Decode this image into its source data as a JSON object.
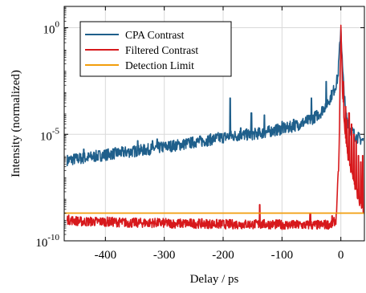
{
  "chart_data": {
    "type": "line",
    "title": "",
    "xlabel": "Delay / ps",
    "ylabel": "Intensity (normalized)",
    "xlim": [
      -470,
      40
    ],
    "ylim": [
      1e-10,
      10
    ],
    "yscale": "log",
    "grid": true,
    "legend_position": "top-left",
    "x_ticks": [
      -400,
      -300,
      -200,
      -100,
      0
    ],
    "x_tick_labels": [
      "-400",
      "-300",
      "-200",
      "-100",
      "0"
    ],
    "y_ticks": [
      {
        "value": 1e-10,
        "base": "10",
        "exp": "-10"
      },
      {
        "value": 1e-05,
        "base": "10",
        "exp": "-5"
      },
      {
        "value": 1,
        "base": "10",
        "exp": "0"
      }
    ],
    "series": [
      {
        "name": "CPA Contrast",
        "color": "#1f5f8b",
        "points": [
          [
            -465,
            6e-07
          ],
          [
            -450,
            7e-07
          ],
          [
            -430,
            8e-07
          ],
          [
            -410,
            1e-06
          ],
          [
            -390,
            1.2e-06
          ],
          [
            -370,
            1.4e-06
          ],
          [
            -350,
            1.6e-06
          ],
          [
            -330,
            1.9e-06
          ],
          [
            -310,
            2.3e-06
          ],
          [
            -290,
            2.8e-06
          ],
          [
            -270,
            3.3e-06
          ],
          [
            -250,
            4.2e-06
          ],
          [
            -230,
            5e-06
          ],
          [
            -210,
            6.5e-06
          ],
          [
            -190,
            8e-06
          ],
          [
            -170,
            9e-06
          ],
          [
            -150,
            1e-05
          ],
          [
            -130,
            1.2e-05
          ],
          [
            -110,
            1.6e-05
          ],
          [
            -90,
            2e-05
          ],
          [
            -70,
            3e-05
          ],
          [
            -50,
            5e-05
          ],
          [
            -35,
            0.0001
          ],
          [
            -20,
            0.0004
          ],
          [
            -10,
            0.0015
          ],
          [
            -5,
            0.005
          ],
          [
            0,
            1
          ],
          [
            3,
            0.01
          ],
          [
            8,
            0.0001
          ],
          [
            15,
            2e-05
          ],
          [
            25,
            8e-06
          ],
          [
            38,
            5e-06
          ]
        ],
        "spikes": [
          [
            -437,
            2e-06
          ],
          [
            -345,
            5e-06
          ],
          [
            -320,
            5e-06
          ],
          [
            -312,
            6e-06
          ],
          [
            -258,
            4e-06
          ],
          [
            -245,
            6e-06
          ],
          [
            -188,
            0.0005
          ],
          [
            -170,
            2e-05
          ],
          [
            -152,
            0.0001
          ],
          [
            -130,
            8e-05
          ],
          [
            -100,
            4e-05
          ],
          [
            -80,
            5e-05
          ],
          [
            -50,
            0.0005
          ],
          [
            -25,
            0.003
          ]
        ]
      },
      {
        "name": "Filtered Contrast",
        "color": "#d7191c",
        "points": [
          [
            -465,
            1e-09
          ],
          [
            -440,
            8e-10
          ],
          [
            -400,
            8e-10
          ],
          [
            -360,
            7e-10
          ],
          [
            -320,
            7e-10
          ],
          [
            -280,
            6.5e-10
          ],
          [
            -240,
            6.5e-10
          ],
          [
            -200,
            6e-10
          ],
          [
            -160,
            6e-10
          ],
          [
            -120,
            6e-10
          ],
          [
            -80,
            5.5e-10
          ],
          [
            -40,
            5.5e-10
          ],
          [
            -15,
            6e-10
          ],
          [
            -8,
            1e-09
          ],
          [
            -3,
            1e-06
          ],
          [
            0,
            1
          ],
          [
            3,
            0.001
          ],
          [
            7,
            1e-05
          ],
          [
            12,
            1e-06
          ],
          [
            20,
            1e-07
          ],
          [
            30,
            1e-08
          ],
          [
            38,
            3e-09
          ]
        ],
        "spikes": [
          [
            -138,
            5e-09
          ],
          [
            -52,
            2e-09
          ],
          [
            -15,
            1.5e-09
          ],
          [
            4,
            0.003
          ],
          [
            8,
            0.0002
          ],
          [
            10,
            5e-05
          ],
          [
            14,
            0.0001
          ],
          [
            18,
            3e-05
          ],
          [
            22,
            1e-05
          ],
          [
            26,
            5e-06
          ],
          [
            30,
            1e-06
          ],
          [
            34,
            5e-07
          ],
          [
            37,
            1e-06
          ]
        ]
      },
      {
        "name": "Detection Limit",
        "color": "#f29e0c",
        "points": [
          [
            -470,
            2e-09
          ],
          [
            40,
            2e-09
          ]
        ]
      }
    ]
  }
}
